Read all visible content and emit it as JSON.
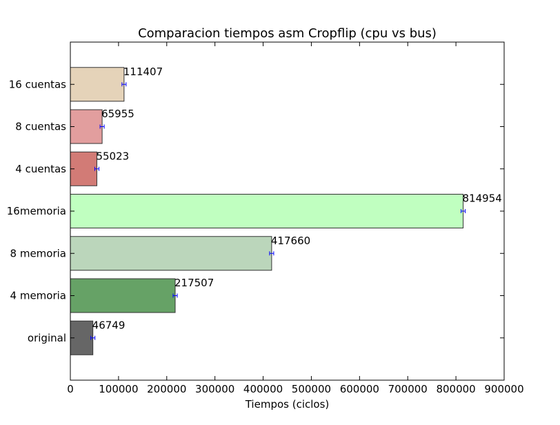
{
  "chart_data": {
    "type": "bar",
    "orientation": "horizontal",
    "title": "Comparacion tiempos asm Cropflip (cpu vs bus)",
    "xlabel": "Tiempos (ciclos)",
    "ylabel": "",
    "xlim": [
      0,
      900000
    ],
    "xticks": [
      0,
      100000,
      200000,
      300000,
      400000,
      500000,
      600000,
      700000,
      800000,
      900000
    ],
    "categories": [
      "original",
      "4 memoria",
      "8 memoria",
      "16memoria",
      "4 cuentas",
      "8 cuentas",
      "16 cuentas"
    ],
    "values": [
      46749,
      217507,
      417660,
      814954,
      55023,
      65955,
      111407
    ],
    "data_labels": [
      "46749",
      "217507",
      "417660",
      "814954",
      "55023",
      "65955",
      "111407"
    ],
    "colors": [
      "#666666",
      "#66a266",
      "#bbd6bb",
      "#c0ffc0",
      "#d27b76",
      "#e29e9e",
      "#e5d3b9"
    ],
    "error_bar_color": "#0000ff",
    "grid": false,
    "legend": "none"
  }
}
